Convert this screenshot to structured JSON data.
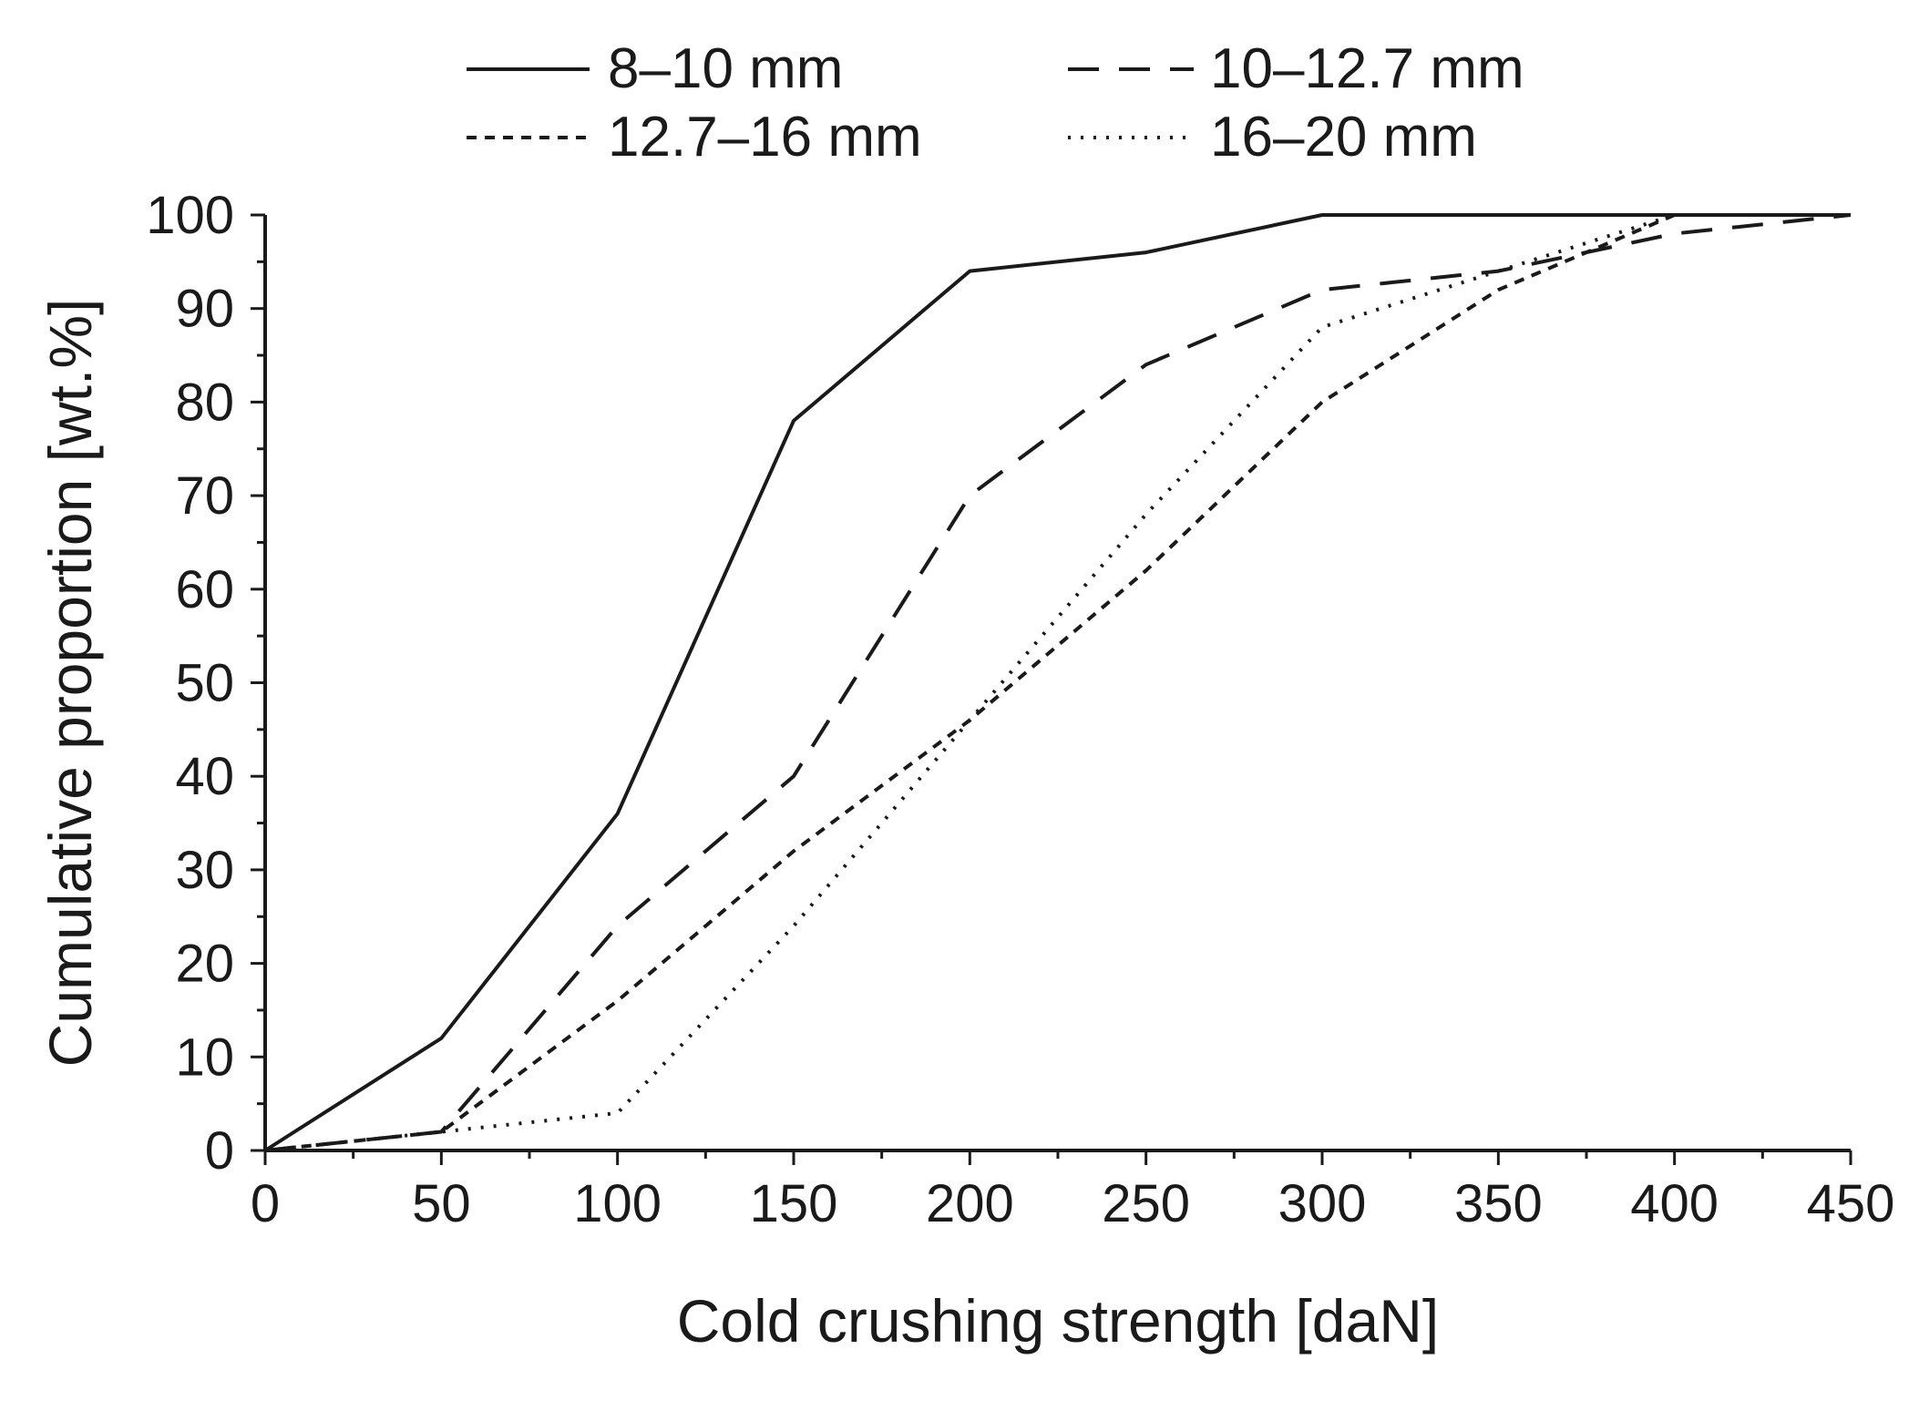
{
  "chart_data": {
    "type": "line",
    "title": "",
    "xlabel": "Cold crushing strength [daN]",
    "ylabel": "Cumulative proportion [wt.%]",
    "xlim": [
      0,
      450
    ],
    "ylim": [
      0,
      100
    ],
    "xticks": [
      0,
      50,
      100,
      150,
      200,
      250,
      300,
      350,
      400,
      450
    ],
    "yticks": [
      0,
      10,
      20,
      30,
      40,
      50,
      60,
      70,
      80,
      90,
      100
    ],
    "x_minor_step": 25,
    "y_minor_step": 5,
    "grid": false,
    "legend_position": "top",
    "series": [
      {
        "name": "8–10 mm",
        "dash": "solid",
        "x": [
          0,
          50,
          100,
          150,
          200,
          250,
          300,
          350,
          400,
          450
        ],
        "values": [
          0,
          12,
          36,
          78,
          94,
          96,
          100,
          100,
          100,
          100
        ]
      },
      {
        "name": "10–12.7 mm",
        "dash": "dashed",
        "x": [
          0,
          50,
          100,
          150,
          200,
          250,
          300,
          350,
          400,
          450
        ],
        "values": [
          0,
          2,
          24,
          40,
          70,
          84,
          92,
          94,
          98,
          100
        ]
      },
      {
        "name": "12.7–16 mm",
        "dash": "short-dashed",
        "x": [
          0,
          50,
          100,
          150,
          200,
          250,
          300,
          350,
          400,
          450
        ],
        "values": [
          0,
          2,
          16,
          32,
          46,
          62,
          80,
          92,
          100,
          100
        ]
      },
      {
        "name": "16–20 mm",
        "dash": "dotted",
        "x": [
          0,
          50,
          100,
          150,
          200,
          250,
          300,
          350,
          400,
          450
        ],
        "values": [
          0,
          2,
          4,
          24,
          46,
          68,
          88,
          94,
          100,
          100
        ]
      }
    ]
  }
}
